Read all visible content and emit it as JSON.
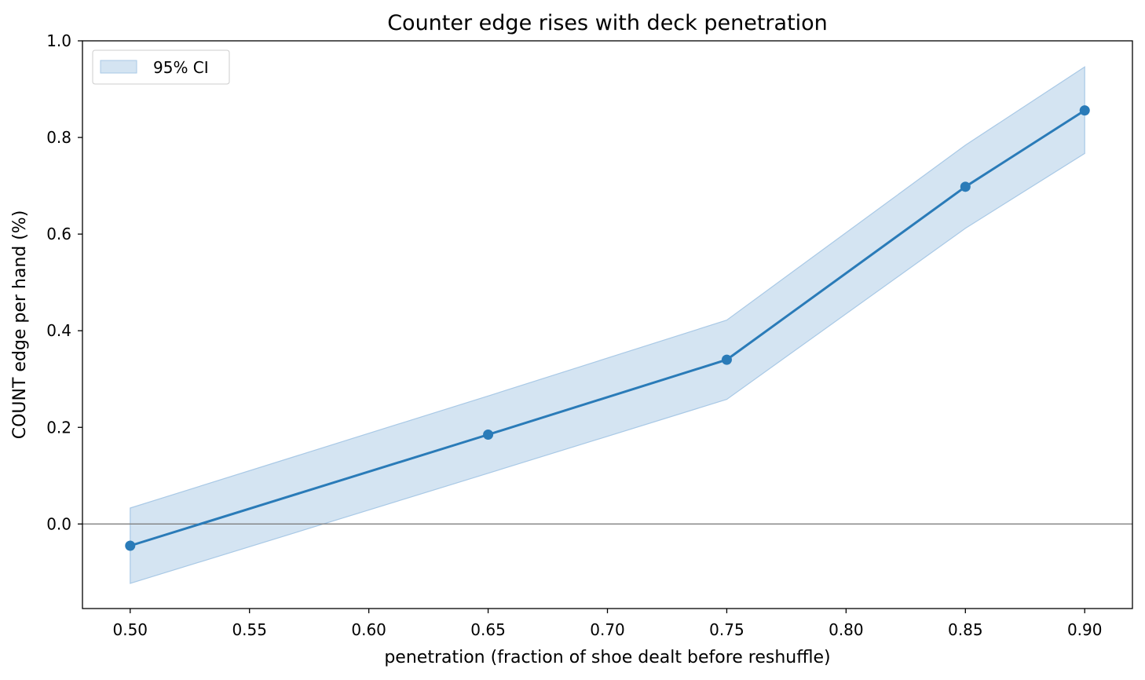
{
  "chart_data": {
    "type": "line",
    "title": "Counter edge rises with deck penetration",
    "xlabel": "penetration (fraction of shoe dealt before reshuffle)",
    "ylabel": "COUNT edge per hand (%)",
    "xlim": [
      0.48,
      0.92
    ],
    "ylim": [
      -0.175,
      1.0
    ],
    "x_ticks": [
      "0.50",
      "0.55",
      "0.60",
      "0.65",
      "0.70",
      "0.75",
      "0.80",
      "0.85",
      "0.90"
    ],
    "y_ticks": [
      "0.0",
      "0.2",
      "0.4",
      "0.6",
      "0.8",
      "1.0"
    ],
    "grid": false,
    "reference_line": {
      "y": 0.0,
      "color": "#808080"
    },
    "legend": {
      "position": "top-left",
      "entries": [
        "95% CI"
      ]
    },
    "series": [
      {
        "x": [
          0.5,
          0.65,
          0.75,
          0.85,
          0.9
        ],
        "y": [
          -0.045,
          0.185,
          0.34,
          0.698,
          0.856
        ],
        "color": "#2a7bb8",
        "marker": "circle"
      }
    ],
    "band": {
      "name": "95% CI",
      "x": [
        0.5,
        0.65,
        0.75,
        0.85,
        0.9
      ],
      "lower": [
        -0.123,
        0.105,
        0.258,
        0.612,
        0.767
      ],
      "upper": [
        0.033,
        0.265,
        0.422,
        0.784,
        0.946
      ],
      "color": "#a9c9e6"
    }
  }
}
